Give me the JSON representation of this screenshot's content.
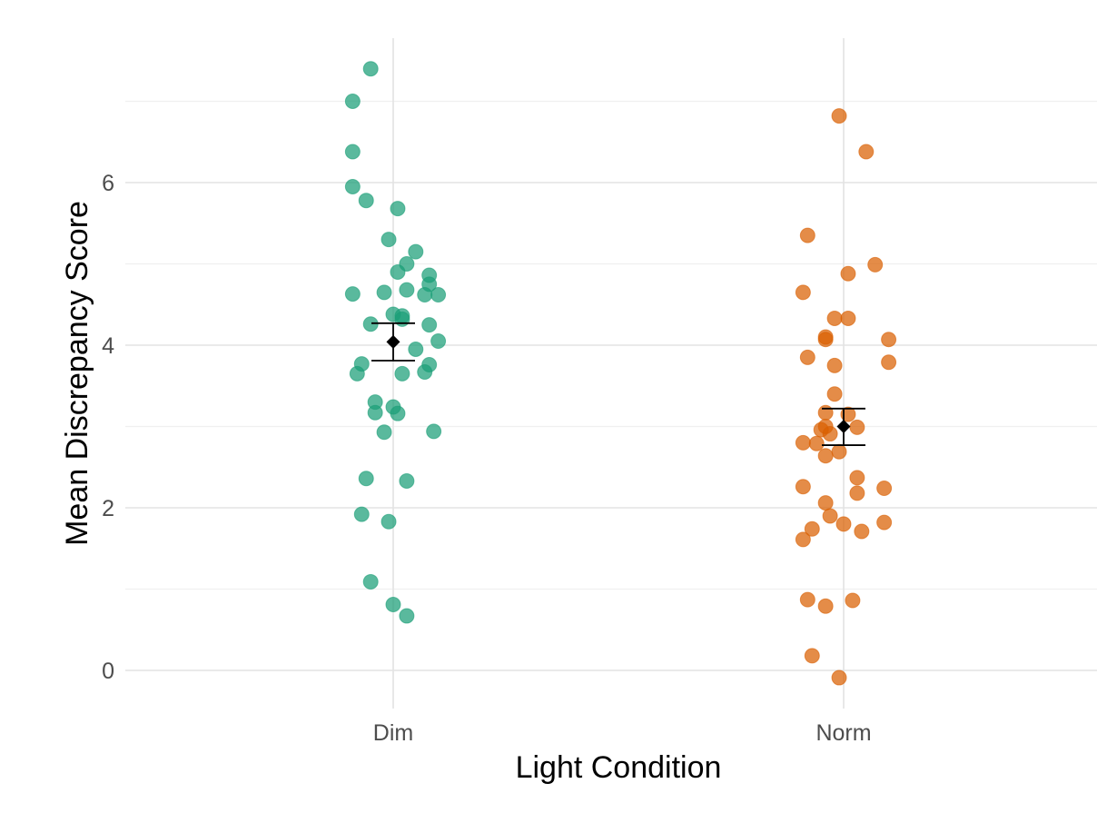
{
  "chart_data": {
    "type": "scatter",
    "xlabel": "Light Condition",
    "ylabel": "Mean Discrepancy Score",
    "categories": [
      "Dim",
      "Norm"
    ],
    "ylim": [
      -0.4,
      7.75
    ],
    "y_ticks": [
      0,
      2,
      4,
      6
    ],
    "grid": true,
    "series": [
      {
        "category": "Dim",
        "color": "#1b9e77",
        "points": [
          [
            -0.05,
            7.4
          ],
          [
            -0.09,
            7.0
          ],
          [
            -0.09,
            6.38
          ],
          [
            -0.09,
            5.95
          ],
          [
            -0.06,
            5.78
          ],
          [
            0.01,
            5.68
          ],
          [
            -0.01,
            5.3
          ],
          [
            0.05,
            5.15
          ],
          [
            0.03,
            5.0
          ],
          [
            0.01,
            4.9
          ],
          [
            0.08,
            4.86
          ],
          [
            0.08,
            4.75
          ],
          [
            -0.09,
            4.63
          ],
          [
            -0.02,
            4.65
          ],
          [
            0.03,
            4.68
          ],
          [
            0.07,
            4.62
          ],
          [
            0.1,
            4.62
          ],
          [
            0.0,
            4.38
          ],
          [
            0.02,
            4.36
          ],
          [
            0.02,
            4.32
          ],
          [
            -0.05,
            4.26
          ],
          [
            0.08,
            4.25
          ],
          [
            0.1,
            4.05
          ],
          [
            0.05,
            3.95
          ],
          [
            -0.07,
            3.77
          ],
          [
            0.08,
            3.76
          ],
          [
            -0.08,
            3.65
          ],
          [
            0.02,
            3.65
          ],
          [
            0.07,
            3.67
          ],
          [
            -0.04,
            3.3
          ],
          [
            0.0,
            3.24
          ],
          [
            -0.04,
            3.17
          ],
          [
            0.01,
            3.16
          ],
          [
            -0.02,
            2.93
          ],
          [
            0.09,
            2.94
          ],
          [
            -0.06,
            2.36
          ],
          [
            0.03,
            2.33
          ],
          [
            -0.07,
            1.92
          ],
          [
            -0.01,
            1.83
          ],
          [
            -0.05,
            1.09
          ],
          [
            0.0,
            0.81
          ],
          [
            0.03,
            0.67
          ]
        ]
      },
      {
        "category": "Norm",
        "color": "#d95f02",
        "points": [
          [
            -0.01,
            6.82
          ],
          [
            0.05,
            6.38
          ],
          [
            -0.08,
            5.35
          ],
          [
            0.07,
            4.99
          ],
          [
            0.01,
            4.88
          ],
          [
            -0.09,
            4.65
          ],
          [
            -0.02,
            4.33
          ],
          [
            0.01,
            4.33
          ],
          [
            -0.04,
            4.1
          ],
          [
            -0.04,
            4.07
          ],
          [
            0.1,
            4.07
          ],
          [
            -0.08,
            3.85
          ],
          [
            -0.02,
            3.75
          ],
          [
            0.1,
            3.79
          ],
          [
            -0.02,
            3.4
          ],
          [
            -0.04,
            3.17
          ],
          [
            0.01,
            3.15
          ],
          [
            -0.04,
            3.0
          ],
          [
            -0.05,
            2.96
          ],
          [
            0.03,
            2.99
          ],
          [
            -0.03,
            2.91
          ],
          [
            -0.09,
            2.8
          ],
          [
            -0.06,
            2.79
          ],
          [
            -0.01,
            2.69
          ],
          [
            -0.04,
            2.64
          ],
          [
            0.03,
            2.37
          ],
          [
            0.09,
            2.24
          ],
          [
            -0.09,
            2.26
          ],
          [
            0.03,
            2.18
          ],
          [
            -0.04,
            2.06
          ],
          [
            -0.03,
            1.9
          ],
          [
            0.0,
            1.8
          ],
          [
            0.09,
            1.82
          ],
          [
            -0.07,
            1.74
          ],
          [
            0.04,
            1.71
          ],
          [
            -0.09,
            1.61
          ],
          [
            -0.08,
            0.87
          ],
          [
            0.02,
            0.86
          ],
          [
            -0.04,
            0.79
          ],
          [
            -0.07,
            0.18
          ],
          [
            -0.01,
            -0.09
          ]
        ]
      }
    ],
    "summary": [
      {
        "category": "Dim",
        "mean": 4.04,
        "ymin": 3.81,
        "ymax": 4.27
      },
      {
        "category": "Norm",
        "mean": 3.0,
        "ymin": 2.77,
        "ymax": 3.22
      }
    ]
  }
}
